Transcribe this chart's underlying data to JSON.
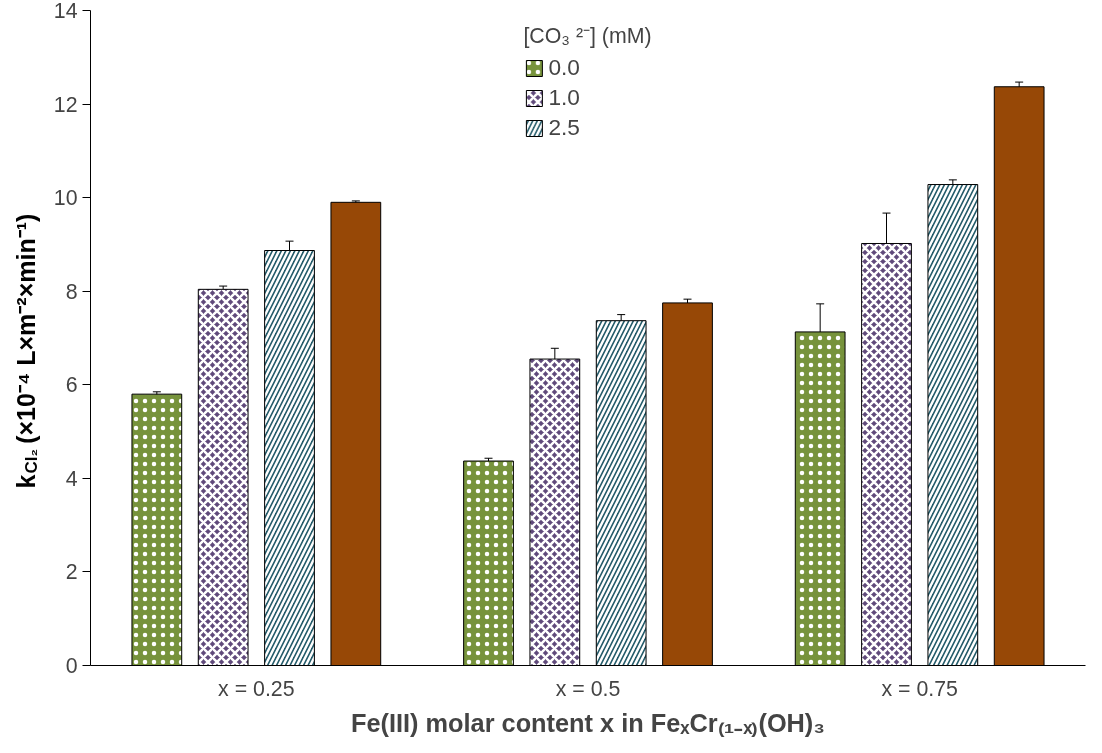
{
  "chart_data": {
    "type": "bar",
    "xlabel": "Fe(III) molar content x in FeₓCr₍₁₋ₓ₎(OH)₃",
    "ylabel": "k$_{Cl₂}$ (×10⁻⁴ L×m⁻²×min⁻¹)",
    "legend_title": "[CO₃ ²⁻] (mM)",
    "categories": [
      "x = 0.25",
      "x = 0.5",
      "x = 0.75"
    ],
    "series": [
      {
        "name": "0.0",
        "color": "#77933c",
        "values": [
          5.8,
          4.37,
          7.13
        ],
        "errors": [
          0.05,
          0.06,
          0.6
        ]
      },
      {
        "name": "1.0",
        "color": "#604a7b",
        "values": [
          8.04,
          6.55,
          9.02
        ],
        "errors": [
          0.07,
          0.23,
          0.65
        ]
      },
      {
        "name": "2.5",
        "color": "#215968",
        "values": [
          8.87,
          7.37,
          10.28
        ],
        "errors": [
          0.2,
          0.13,
          0.1
        ]
      },
      {
        "color": "#974806",
        "values": [
          9.9,
          7.75,
          12.37
        ],
        "errors": [
          0.03,
          0.08,
          0.1
        ]
      }
    ],
    "ylim": [
      0,
      14
    ],
    "yticks": [
      0,
      2,
      4,
      6,
      8,
      10,
      12,
      14
    ],
    "grid": false,
    "legend": "top"
  }
}
